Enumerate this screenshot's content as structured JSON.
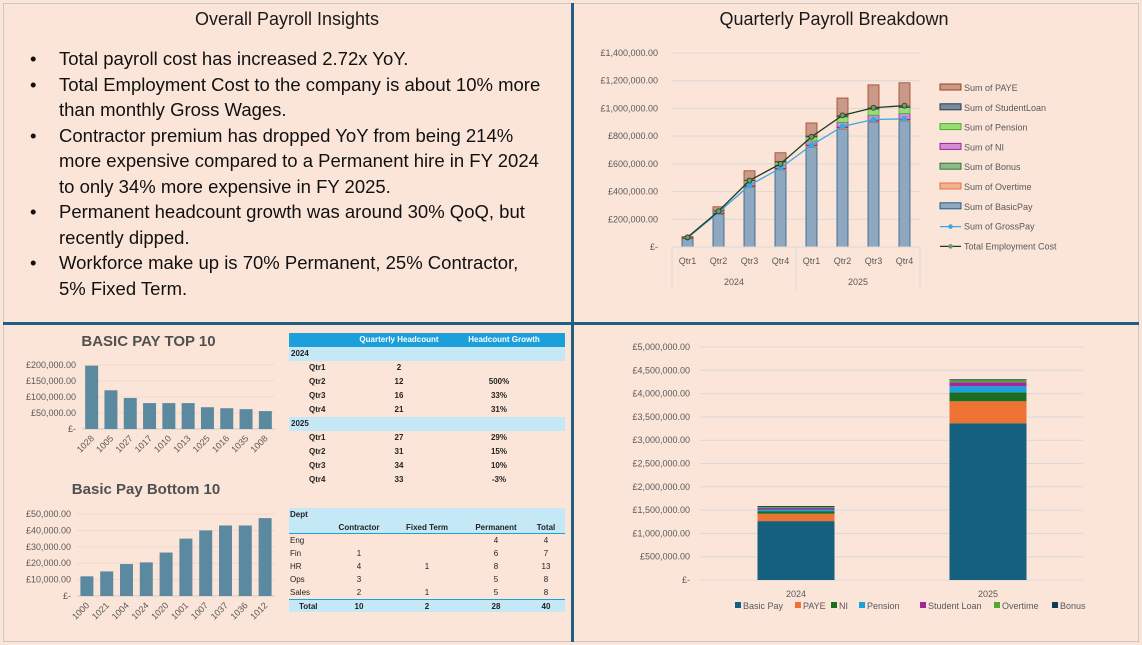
{
  "insights": {
    "title": "Overall Payroll Insights",
    "bullets": [
      "Total payroll cost has increased 2.72x YoY.",
      "Total Employment Cost to the company is about 10% more than monthly Gross Wages.",
      "Contractor premium has dropped YoY from being 214% more expensive compared to a Permanent hire in FY 2024 to only 34% more expensive in FY 2025.",
      "Permanent headcount growth was around 30% QoQ, but recently dipped.",
      "Workforce make up is 70% Permanent, 25% Contractor, 5% Fixed Term."
    ]
  },
  "quarterly_title": "Quarterly Payroll Breakdown",
  "headcount_table": {
    "headers": [
      "Quarterly Headcount",
      "Headcount Growth"
    ],
    "groups": [
      {
        "year": "2024",
        "rows": [
          [
            "Qtr1",
            "2",
            ""
          ],
          [
            "Qtr2",
            "12",
            "500%"
          ],
          [
            "Qtr3",
            "16",
            "33%"
          ],
          [
            "Qtr4",
            "21",
            "31%"
          ]
        ]
      },
      {
        "year": "2025",
        "rows": [
          [
            "Qtr1",
            "27",
            "29%"
          ],
          [
            "Qtr2",
            "31",
            "15%"
          ],
          [
            "Qtr3",
            "34",
            "10%"
          ],
          [
            "Qtr4",
            "33",
            "-3%"
          ]
        ]
      }
    ]
  },
  "dept_table": {
    "title": "Dept",
    "headers": [
      "Contractor",
      "Fixed Term",
      "Permanent",
      "Total"
    ],
    "rows": [
      [
        "Eng",
        "",
        "",
        "4",
        "4"
      ],
      [
        "Fin",
        "1",
        "",
        "6",
        "7"
      ],
      [
        "HR",
        "4",
        "1",
        "8",
        "13"
      ],
      [
        "Ops",
        "3",
        "",
        "5",
        "8"
      ],
      [
        "Sales",
        "2",
        "1",
        "5",
        "8"
      ]
    ],
    "total": [
      "Total",
      "10",
      "2",
      "28",
      "40"
    ]
  },
  "colors": {
    "background": "#fbe5d9",
    "divider": "#215f82",
    "table_header": "#1ba0da",
    "table_band": "#c5e8f7"
  },
  "chart_data": [
    {
      "type": "bar+line",
      "stacked": true,
      "categories": [
        "Qtr1",
        "Qtr2",
        "Qtr3",
        "Qtr4",
        "Qtr1",
        "Qtr2",
        "Qtr3",
        "Qtr4"
      ],
      "groups": [
        {
          "label": "2024",
          "count": 4
        },
        {
          "label": "2025",
          "count": 4
        }
      ],
      "ylim": [
        0,
        1400000
      ],
      "yticks": [
        "£-",
        "£200,000.00",
        "£400,000.00",
        "£600,000.00",
        "£800,000.00",
        "£1,000,000.00",
        "£1,200,000.00",
        "£1,400,000.00"
      ],
      "grid": true,
      "legend": "right",
      "series": [
        {
          "name": "Sum of BasicPay",
          "kind": "bar",
          "fill": "#8fa8bf",
          "stroke": "#1f5f8a",
          "values": [
            60000,
            235000,
            430000,
            555000,
            720000,
            850000,
            900000,
            910000
          ]
        },
        {
          "name": "Sum of Overtime",
          "kind": "bar",
          "fill": "#f5b090",
          "stroke": "#e87040",
          "values": [
            1000,
            4000,
            7000,
            8000,
            10000,
            10000,
            8000,
            8000
          ]
        },
        {
          "name": "Sum of Bonus",
          "kind": "bar",
          "fill": "#90b890",
          "stroke": "#2a7a2a",
          "values": [
            1000,
            3000,
            5000,
            5000,
            5000,
            5000,
            3000,
            3000
          ]
        },
        {
          "name": "Sum of NI",
          "kind": "bar",
          "fill": "#d090d0",
          "stroke": "#a020a0",
          "values": [
            3000,
            10000,
            20000,
            25000,
            30000,
            35000,
            40000,
            42000
          ]
        },
        {
          "name": "Sum of Pension",
          "kind": "bar",
          "fill": "#98dc78",
          "stroke": "#4caf2a",
          "values": [
            2000,
            8000,
            16000,
            20000,
            30000,
            40000,
            45000,
            45000
          ]
        },
        {
          "name": "Sum of StudentLoan",
          "kind": "bar",
          "fill": "#7a8a9a",
          "stroke": "#1f3b5a",
          "values": [
            500,
            2000,
            4000,
            5000,
            6000,
            8000,
            9000,
            9000
          ]
        },
        {
          "name": "Sum of PAYE",
          "kind": "bar",
          "fill": "#c99a8a",
          "stroke": "#a0401a",
          "values": [
            7500,
            28000,
            68000,
            62000,
            94000,
            127000,
            165000,
            168000
          ]
        },
        {
          "name": "Sum of GrossPay",
          "kind": "line",
          "color": "#3aa8e0",
          "values": [
            65000,
            250000,
            445000,
            570000,
            735000,
            870000,
            920000,
            925000
          ]
        },
        {
          "name": "Total Employment Cost",
          "kind": "line",
          "color": "#1f3a1f",
          "marker": "#6a9a6a",
          "values": [
            70000,
            258000,
            480000,
            600000,
            795000,
            950000,
            1005000,
            1020000
          ]
        }
      ],
      "legend_order": [
        "Sum of PAYE",
        "Sum of StudentLoan",
        "Sum of Pension",
        "Sum of NI",
        "Sum of Bonus",
        "Sum of Overtime",
        "Sum of BasicPay",
        "Sum of GrossPay",
        "Total Employment Cost"
      ]
    },
    {
      "type": "bar",
      "title": "BASIC PAY TOP 10",
      "categories": [
        "1028",
        "1005",
        "1027",
        "1017",
        "1010",
        "1013",
        "1025",
        "1016",
        "1035",
        "1008"
      ],
      "values": [
        198000,
        121000,
        97000,
        81000,
        81000,
        81000,
        68000,
        65000,
        62000,
        56000
      ],
      "ylim": [
        0,
        200000
      ],
      "yticks": [
        "£-",
        "£50,000.00",
        "£100,000.00",
        "£150,000.00",
        "£200,000.00"
      ],
      "color": "#5b8aa0"
    },
    {
      "type": "bar",
      "title": "Basic Pay Bottom 10",
      "categories": [
        "1000",
        "1021",
        "1004",
        "1024",
        "1020",
        "1001",
        "1007",
        "1037",
        "1036",
        "1012"
      ],
      "values": [
        12000,
        15000,
        19500,
        20500,
        26500,
        35000,
        40000,
        43000,
        43000,
        47500
      ],
      "ylim": [
        0,
        50000
      ],
      "yticks": [
        "£-",
        "£10,000.00",
        "£20,000.00",
        "£30,000.00",
        "£40,000.00",
        "£50,000.00"
      ],
      "color": "#5b8aa0"
    },
    {
      "type": "bar",
      "stacked": true,
      "categories": [
        "2024",
        "2025"
      ],
      "ylim": [
        0,
        5000000
      ],
      "yticks": [
        "£-",
        "£500,000.00",
        "£1,000,000.00",
        "£1,500,000.00",
        "£2,000,000.00",
        "£2,500,000.00",
        "£3,000,000.00",
        "£3,500,000.00",
        "£4,000,000.00",
        "£4,500,000.00",
        "£5,000,000.00"
      ],
      "legend": "bottom",
      "series": [
        {
          "name": "Basic Pay",
          "color": "#16607f",
          "values": [
            1264000,
            3364000
          ]
        },
        {
          "name": "PAYE",
          "color": "#ed7234",
          "values": [
            157000,
            471000
          ]
        },
        {
          "name": "NI",
          "color": "#1a6e22",
          "values": [
            57000,
            193000
          ]
        },
        {
          "name": "Pension",
          "color": "#1aa0dc",
          "values": [
            35000,
            129000
          ]
        },
        {
          "name": "Student Loan",
          "color": "#a02898",
          "values": [
            35000,
            86000
          ]
        },
        {
          "name": "Overtime",
          "color": "#4caa2e",
          "values": [
            20000,
            43000
          ]
        },
        {
          "name": "Bonus",
          "color": "#0f3a55",
          "values": [
            20000,
            21000
          ]
        }
      ]
    }
  ]
}
